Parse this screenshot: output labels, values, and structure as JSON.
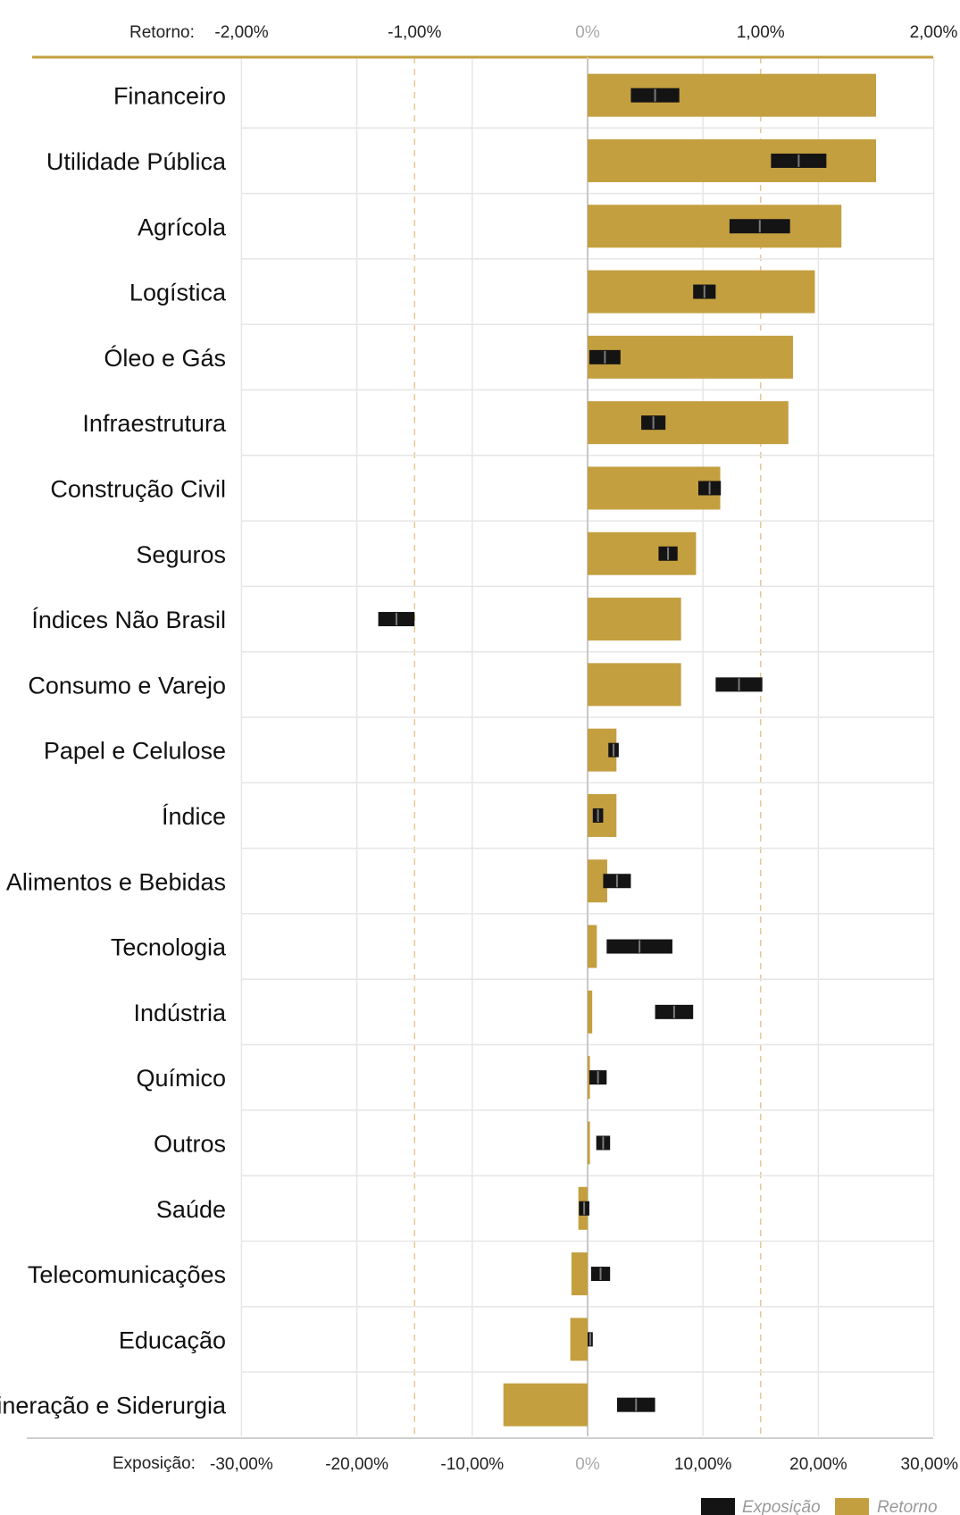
{
  "chart_data": {
    "type": "bar",
    "orientation": "horizontal",
    "colors": {
      "retorno": "#C49F3F",
      "exposicao": "#141414",
      "top_axis_line": "#C49F3F",
      "grid": "#e6e6e6",
      "dashed": "#e7c796"
    },
    "top_axis": {
      "title": "Retorno:",
      "range": [
        -2.0,
        2.0
      ],
      "ticks": [
        -2.0,
        -1.0,
        0,
        1.0,
        2.0
      ],
      "tick_labels": [
        "-2,00%",
        "-1,00%",
        "0%",
        "1,00%",
        "2,00%"
      ]
    },
    "bottom_axis": {
      "title": "Exposição:",
      "range": [
        -30,
        30
      ],
      "ticks": [
        -30,
        -20,
        -10,
        0,
        10,
        20,
        30
      ],
      "tick_labels": [
        "-30,00%",
        "-20,00%",
        "-10,00%",
        "0%",
        "10,00%",
        "20,00%",
        "30,00%"
      ]
    },
    "categories": [
      "Financeiro",
      "Utilidade Pública",
      "Agrícola",
      "Logística",
      "Óleo e Gás",
      "Infraestrutura",
      "Construção Civil",
      "Seguros",
      "Índices Não Brasil",
      "Consumo e Varejo",
      "Papel e Celulose",
      "Índice",
      "Alimentos e Bebidas",
      "Tecnologia",
      "Indústria",
      "Químico",
      "Outros",
      "Saúde",
      "Telecomunicações",
      "Educação",
      "Mineração e Siderurgia"
    ],
    "series": [
      {
        "name": "Retorno",
        "axis": "exposure",
        "values": [
          25.0,
          25.0,
          22.0,
          19.7,
          17.8,
          17.4,
          11.5,
          9.4,
          8.1,
          8.1,
          2.5,
          2.5,
          1.7,
          0.8,
          0.4,
          0.2,
          0.2,
          -0.8,
          -1.4,
          -1.5,
          -7.3
        ]
      },
      {
        "name": "Exposição",
        "axis": "return",
        "ranges": [
          [
            0.25,
            0.53
          ],
          [
            1.06,
            1.38
          ],
          [
            0.82,
            1.17
          ],
          [
            0.61,
            0.74
          ],
          [
            0.01,
            0.19
          ],
          [
            0.31,
            0.45
          ],
          [
            0.64,
            0.77
          ],
          [
            0.41,
            0.52
          ],
          [
            -1.21,
            -1.0
          ],
          [
            0.74,
            1.01
          ],
          [
            0.12,
            0.18
          ],
          [
            0.03,
            0.09
          ],
          [
            0.09,
            0.25
          ],
          [
            0.11,
            0.49
          ],
          [
            0.39,
            0.61
          ],
          [
            0.01,
            0.11
          ],
          [
            0.05,
            0.13
          ],
          [
            -0.05,
            0.01
          ],
          [
            0.02,
            0.13
          ],
          [
            0.0,
            0.03
          ],
          [
            0.17,
            0.39
          ]
        ]
      }
    ],
    "legend": {
      "position": "bottom-right",
      "items": [
        "Exposição",
        "Retorno"
      ]
    },
    "grid": true
  }
}
